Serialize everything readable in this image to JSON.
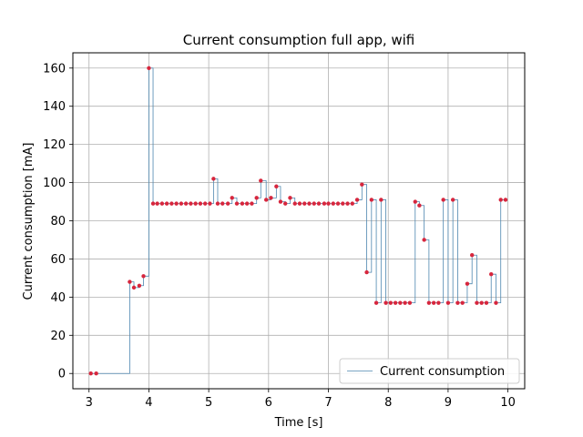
{
  "chart_data": {
    "type": "line",
    "title": "Current consumption full app, wifi",
    "xlabel": "Time [s]",
    "ylabel": "Current consumption [mA]",
    "xlim": [
      2.73,
      10.28
    ],
    "ylim": [
      -8,
      168
    ],
    "xticks": [
      3,
      4,
      5,
      6,
      7,
      8,
      9,
      10
    ],
    "yticks": [
      0,
      20,
      40,
      60,
      80,
      100,
      120,
      140,
      160
    ],
    "grid": true,
    "step": "post",
    "legend": {
      "position": "lower right",
      "entries": [
        "Current consumption"
      ]
    },
    "colors": {
      "line": "#4e87b0",
      "marker": "#d7263d",
      "grid": "#b0b0b0"
    },
    "series": [
      {
        "name": "Current consumption",
        "x": [
          3.03,
          3.12,
          3.68,
          3.75,
          3.84,
          3.91,
          4.0,
          4.07,
          4.14,
          4.22,
          4.3,
          4.38,
          4.46,
          4.54,
          4.62,
          4.7,
          4.78,
          4.86,
          4.94,
          5.02,
          5.08,
          5.15,
          5.23,
          5.32,
          5.39,
          5.47,
          5.56,
          5.64,
          5.72,
          5.8,
          5.87,
          5.96,
          6.04,
          6.13,
          6.2,
          6.28,
          6.36,
          6.44,
          6.52,
          6.6,
          6.68,
          6.76,
          6.84,
          6.93,
          7.0,
          7.08,
          7.16,
          7.24,
          7.32,
          7.4,
          7.48,
          7.56,
          7.64,
          7.72,
          7.8,
          7.88,
          7.96,
          8.04,
          8.12,
          8.2,
          8.28,
          8.36,
          8.45,
          8.52,
          8.6,
          8.68,
          8.76,
          8.84,
          8.92,
          9.0,
          9.08,
          9.16,
          9.24,
          9.32,
          9.4,
          9.48,
          9.56,
          9.64,
          9.72,
          9.8,
          9.88,
          9.96
        ],
        "y": [
          0,
          0,
          48,
          45,
          46,
          51,
          160,
          89,
          89,
          89,
          89,
          89,
          89,
          89,
          89,
          89,
          89,
          89,
          89,
          89,
          102,
          89,
          89,
          89,
          92,
          89,
          89,
          89,
          89,
          92,
          101,
          91,
          92,
          98,
          90,
          89,
          92,
          89,
          89,
          89,
          89,
          89,
          89,
          89,
          89,
          89,
          89,
          89,
          89,
          89,
          91,
          99,
          53,
          91,
          37,
          91,
          37,
          37,
          37,
          37,
          37,
          37,
          90,
          88,
          70,
          37,
          37,
          37,
          91,
          37,
          91,
          37,
          37,
          47,
          62,
          37,
          37,
          37,
          52,
          37,
          91,
          91
        ]
      }
    ]
  }
}
